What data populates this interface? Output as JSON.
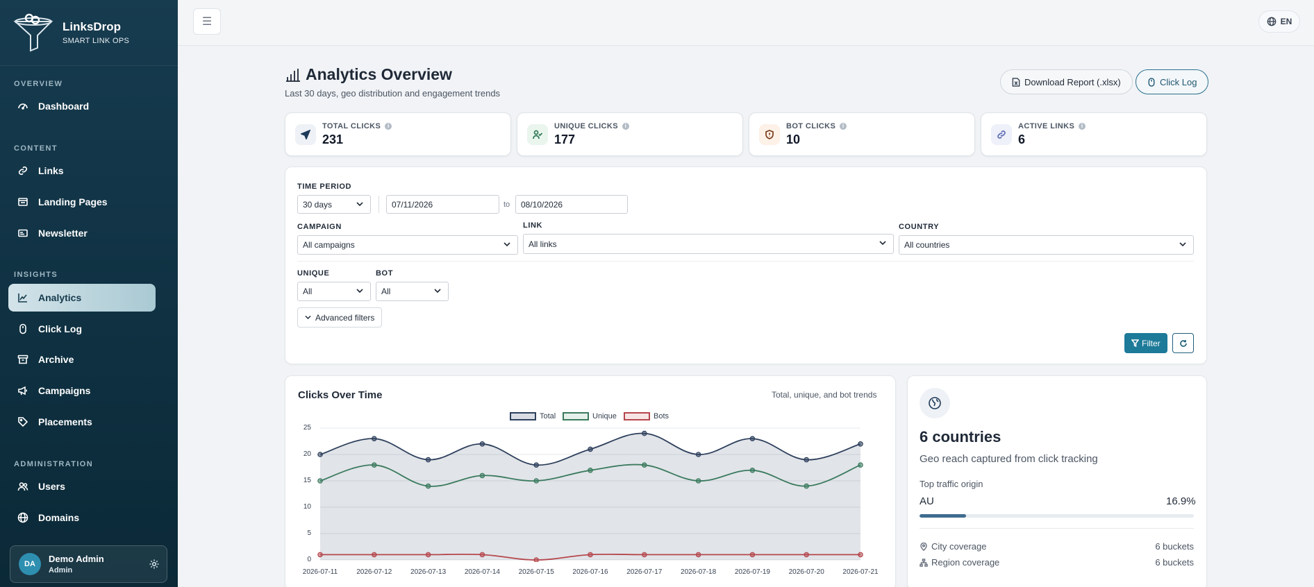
{
  "brand": {
    "name": "LinksDrop",
    "tagline": "SMART LINK OPS"
  },
  "sidebar": {
    "sections": {
      "overview": "OVERVIEW",
      "content": "CONTENT",
      "insights": "INSIGHTS",
      "administration": "ADMINISTRATION"
    },
    "items": [
      {
        "label": "Dashboard",
        "icon": "gauge-icon"
      },
      {
        "label": "Links",
        "icon": "link-icon"
      },
      {
        "label": "Landing Pages",
        "icon": "window-icon"
      },
      {
        "label": "Newsletter",
        "icon": "mail-icon"
      },
      {
        "label": "Analytics",
        "icon": "line-chart-icon",
        "active": true
      },
      {
        "label": "Click Log",
        "icon": "mouse-icon"
      },
      {
        "label": "Archive",
        "icon": "archive-icon"
      },
      {
        "label": "Campaigns",
        "icon": "megaphone-icon"
      },
      {
        "label": "Placements",
        "icon": "tag-icon"
      },
      {
        "label": "Users",
        "icon": "users-icon"
      },
      {
        "label": "Domains",
        "icon": "globe-icon"
      }
    ],
    "user": {
      "initials": "DA",
      "name": "Demo Admin",
      "role": "Admin"
    }
  },
  "topbar": {
    "lang": "EN"
  },
  "header": {
    "title": "Analytics Overview",
    "subtitle": "Last 30 days, geo distribution and engagement trends",
    "download_label": "Download Report (.xlsx)",
    "clicklog_label": "Click Log"
  },
  "stats": [
    {
      "label": "TOTAL CLICKS",
      "value": "231",
      "color": "#1f3b5a",
      "bg": "#eef1f5"
    },
    {
      "label": "UNIQUE CLICKS",
      "value": "177",
      "color": "#2f7a54",
      "bg": "#eaf5ee"
    },
    {
      "label": "BOT CLICKS",
      "value": "10",
      "color": "#c2410c",
      "bg": "#fdf1e8"
    },
    {
      "label": "ACTIVE LINKS",
      "value": "6",
      "color": "#5b6bb5",
      "bg": "#eef0fa"
    }
  ],
  "filters": {
    "time_period_label": "TIME PERIOD",
    "period": "30 days",
    "date_from": "07/11/2026",
    "to_text": "to",
    "date_to": "08/10/2026",
    "campaign_label": "CAMPAIGN",
    "campaign": "All campaigns",
    "link_label": "LINK",
    "link": "All links",
    "country_label": "COUNTRY",
    "country": "All countries",
    "unique_label": "UNIQUE",
    "unique": "All",
    "bot_label": "BOT",
    "bot": "All",
    "advanced_label": "Advanced filters",
    "filter_label": "Filter"
  },
  "chart_card": {
    "title": "Clicks Over Time",
    "subtitle": "Total, unique, and bot trends"
  },
  "chart_data": {
    "type": "line",
    "x": [
      "2026-07-11",
      "2026-07-12",
      "2026-07-13",
      "2026-07-14",
      "2026-07-15",
      "2026-07-16",
      "2026-07-17",
      "2026-07-18",
      "2026-07-19",
      "2026-07-20",
      "2026-07-21"
    ],
    "series": [
      {
        "name": "Total",
        "values": [
          20,
          23,
          19,
          22,
          18,
          21,
          24,
          20,
          23,
          19,
          22
        ],
        "color": "#2d3f5c",
        "fill": "rgba(120,134,152,0.22)"
      },
      {
        "name": "Unique",
        "values": [
          15,
          18,
          14,
          16,
          15,
          17,
          18,
          15,
          17,
          14,
          18
        ],
        "color": "#3a7a5e",
        "fill": "none"
      },
      {
        "name": "Bots",
        "values": [
          1,
          1,
          1,
          1,
          0,
          1,
          1,
          1,
          1,
          1,
          1
        ],
        "color": "#b5474d",
        "fill": "none"
      }
    ],
    "yticks": [
      0,
      5,
      10,
      15,
      20,
      25
    ],
    "ylim": [
      0,
      25
    ],
    "grid": true,
    "legend": "top-center"
  },
  "geo": {
    "count": "6 countries",
    "desc": "Geo reach captured from click tracking",
    "top_label": "Top traffic origin",
    "top_country": "AU",
    "top_pct": "16.9%",
    "top_fraction": 0.169,
    "city_label": "City coverage",
    "city_value": "6 buckets",
    "region_label": "Region coverage",
    "region_value": "6 buckets"
  }
}
